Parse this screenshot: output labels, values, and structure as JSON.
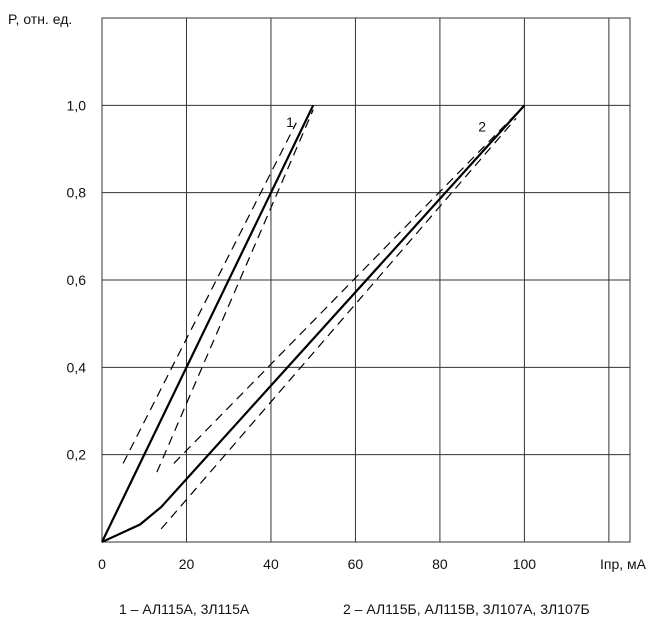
{
  "chart_data": {
    "type": "line",
    "ylabel": "P, отн. ед.",
    "xlabel": "Iпр, мА",
    "xlim": [
      0,
      125
    ],
    "ylim": [
      0,
      1.2
    ],
    "x_ticks": [
      {
        "value": 0,
        "label": "0"
      },
      {
        "value": 20,
        "label": "20"
      },
      {
        "value": 40,
        "label": "40"
      },
      {
        "value": 60,
        "label": "60"
      },
      {
        "value": 80,
        "label": "80"
      },
      {
        "value": 100,
        "label": "100"
      }
    ],
    "y_ticks": [
      {
        "value": 0.2,
        "label": "0,2"
      },
      {
        "value": 0.4,
        "label": "0,4"
      },
      {
        "value": 0.6,
        "label": "0,6"
      },
      {
        "value": 0.8,
        "label": "0,8"
      },
      {
        "value": 1.0,
        "label": "1,0"
      }
    ],
    "grid": true,
    "series": [
      {
        "name": "1",
        "x": [
          0,
          50
        ],
        "y": [
          0,
          1.0
        ],
        "bounds": [
          {
            "x": [
              5,
              46
            ],
            "y": [
              0.18,
              0.96
            ]
          },
          {
            "x": [
              13,
              50
            ],
            "y": [
              0.16,
              0.99
            ]
          }
        ]
      },
      {
        "name": "2",
        "x": [
          0,
          9,
          14,
          100
        ],
        "y": [
          0,
          0.04,
          0.08,
          1.0
        ],
        "bounds": [
          {
            "x": [
              17,
              99
            ],
            "y": [
              0.18,
              0.99
            ]
          },
          {
            "x": [
              14,
              98
            ],
            "y": [
              0.03,
              0.97
            ]
          }
        ]
      }
    ],
    "legend": [
      {
        "label": "1 – АЛ115А, 3Л115А"
      },
      {
        "label": "2 – АЛ115Б, АЛ115В, 3Л107А, 3Л107Б"
      }
    ],
    "legend_position": "bottom"
  }
}
